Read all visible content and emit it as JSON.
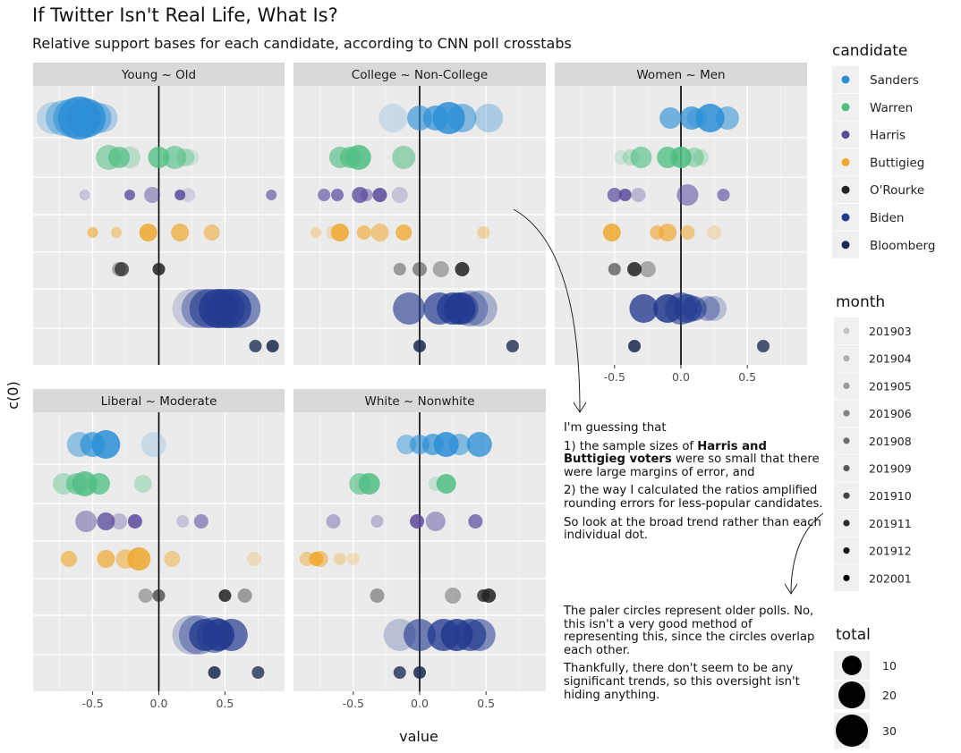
{
  "chart_data": {
    "type": "scatter",
    "title": "If Twitter Isn't Real Life, What Is?",
    "subtitle": "Relative support bases for each candidate, according to CNN poll crosstabs",
    "xlabel": "value",
    "ylabel": "c(0)",
    "xlim": [
      -0.95,
      0.95
    ],
    "x_ticks": [
      "-0.5",
      "0.0",
      "0.5"
    ],
    "candidates": [
      {
        "name": "Sanders",
        "color": "#2B8FD6"
      },
      {
        "name": "Warren",
        "color": "#4FBF83"
      },
      {
        "name": "Harris",
        "color": "#5B4A9E"
      },
      {
        "name": "Buttigieg",
        "color": "#F0A830"
      },
      {
        "name": "O'Rourke",
        "color": "#222222"
      },
      {
        "name": "Biden",
        "color": "#233A8F"
      },
      {
        "name": "Bloomberg",
        "color": "#1A2A50"
      }
    ],
    "months": [
      "201903",
      "201904",
      "201905",
      "201906",
      "201908",
      "201909",
      "201910",
      "201911",
      "201912",
      "202001"
    ],
    "total_sizes": [
      10,
      20,
      30
    ],
    "panels": [
      {
        "label": "Young ~ Old",
        "points": {
          "Sanders": [
            [
              -0.8,
              18,
              1
            ],
            [
              -0.72,
              20,
              3
            ],
            [
              -0.65,
              22,
              5
            ],
            [
              -0.6,
              24,
              9
            ],
            [
              -0.55,
              22,
              8
            ],
            [
              -0.48,
              18,
              4
            ],
            [
              -0.42,
              16,
              2
            ]
          ],
          "Warren": [
            [
              -0.38,
              14,
              5
            ],
            [
              -0.3,
              12,
              7
            ],
            [
              -0.22,
              12,
              2
            ],
            [
              0.0,
              12,
              8
            ],
            [
              0.12,
              13,
              6
            ],
            [
              0.2,
              10,
              3
            ],
            [
              0.24,
              9,
              0
            ]
          ],
          "Harris": [
            [
              -0.56,
              6,
              1
            ],
            [
              -0.22,
              6,
              8
            ],
            [
              -0.05,
              9,
              4
            ],
            [
              0.16,
              6,
              9
            ],
            [
              0.22,
              8,
              0
            ],
            [
              0.85,
              6,
              6
            ]
          ],
          "Buttigieg": [
            [
              -0.5,
              6,
              6
            ],
            [
              -0.32,
              6,
              4
            ],
            [
              -0.08,
              10,
              9
            ],
            [
              0.16,
              10,
              7
            ],
            [
              0.4,
              9,
              5
            ]
          ],
          "O'Rourke": [
            [
              -0.3,
              8,
              2
            ],
            [
              -0.28,
              8,
              7
            ],
            [
              0.0,
              7,
              9
            ]
          ],
          "Biden": [
            [
              0.25,
              22,
              0
            ],
            [
              0.32,
              22,
              3
            ],
            [
              0.38,
              22,
              6
            ],
            [
              0.45,
              22,
              9
            ],
            [
              0.5,
              22,
              7
            ],
            [
              0.55,
              22,
              8
            ],
            [
              0.62,
              22,
              5
            ]
          ],
          "Bloomberg": [
            [
              0.73,
              7,
              8
            ],
            [
              0.86,
              7,
              9
            ]
          ]
        }
      },
      {
        "label": "College ~ Non-College",
        "points": {
          "Sanders": [
            [
              -0.2,
              16,
              0
            ],
            [
              0.0,
              14,
              6
            ],
            [
              0.12,
              14,
              7
            ],
            [
              0.22,
              18,
              9
            ],
            [
              0.32,
              16,
              5
            ],
            [
              0.52,
              16,
              2
            ]
          ],
          "Warren": [
            [
              -0.6,
              12,
              6
            ],
            [
              -0.52,
              12,
              7
            ],
            [
              -0.46,
              14,
              9
            ],
            [
              -0.12,
              13,
              5
            ]
          ],
          "Harris": [
            [
              -0.72,
              7,
              6
            ],
            [
              -0.62,
              7,
              7
            ],
            [
              -0.45,
              9,
              8
            ],
            [
              -0.4,
              7,
              4
            ],
            [
              -0.3,
              8,
              9
            ],
            [
              -0.15,
              9,
              1
            ]
          ],
          "Buttigieg": [
            [
              -0.78,
              6,
              2
            ],
            [
              -0.65,
              8,
              1
            ],
            [
              -0.6,
              10,
              9
            ],
            [
              -0.42,
              8,
              6
            ],
            [
              -0.3,
              10,
              5
            ],
            [
              -0.12,
              9,
              8
            ],
            [
              0.48,
              7,
              3
            ]
          ],
          "O'Rourke": [
            [
              -0.15,
              7,
              3
            ],
            [
              0.0,
              8,
              4
            ],
            [
              0.16,
              9,
              2
            ],
            [
              0.32,
              8,
              9
            ]
          ],
          "Biden": [
            [
              -0.08,
              18,
              6
            ],
            [
              0.15,
              18,
              7
            ],
            [
              0.25,
              18,
              8
            ],
            [
              0.3,
              18,
              9
            ],
            [
              0.32,
              18,
              5
            ],
            [
              0.45,
              20,
              2
            ],
            [
              0.38,
              20,
              3
            ]
          ],
          "Bloomberg": [
            [
              0.0,
              7,
              9
            ],
            [
              0.7,
              7,
              8
            ]
          ]
        }
      },
      {
        "label": "Women ~ Men",
        "points": {
          "Sanders": [
            [
              -0.08,
              12,
              6
            ],
            [
              0.08,
              13,
              7
            ],
            [
              0.22,
              16,
              9
            ],
            [
              0.35,
              13,
              5
            ],
            [
              0.12,
              11,
              3
            ]
          ],
          "Warren": [
            [
              -0.45,
              8,
              0
            ],
            [
              -0.38,
              9,
              2
            ],
            [
              -0.3,
              12,
              6
            ],
            [
              -0.1,
              12,
              8
            ],
            [
              0.0,
              12,
              9
            ],
            [
              0.1,
              11,
              4
            ],
            [
              0.15,
              9,
              1
            ]
          ],
          "Harris": [
            [
              -0.5,
              8,
              7
            ],
            [
              -0.42,
              7,
              9
            ],
            [
              -0.32,
              8,
              2
            ],
            [
              0.05,
              12,
              5
            ],
            [
              0.32,
              7,
              6
            ]
          ],
          "Buttigieg": [
            [
              -0.52,
              10,
              9
            ],
            [
              -0.18,
              8,
              6
            ],
            [
              -0.1,
              10,
              7
            ],
            [
              0.05,
              8,
              5
            ],
            [
              0.25,
              8,
              1
            ]
          ],
          "O'Rourke": [
            [
              -0.5,
              7,
              5
            ],
            [
              -0.35,
              8,
              9
            ],
            [
              -0.25,
              9,
              2
            ]
          ],
          "Biden": [
            [
              -0.28,
              16,
              8
            ],
            [
              -0.1,
              16,
              9
            ],
            [
              0.0,
              18,
              6
            ],
            [
              0.05,
              16,
              7
            ],
            [
              0.1,
              14,
              5
            ],
            [
              0.2,
              14,
              3
            ],
            [
              0.25,
              14,
              1
            ]
          ],
          "Bloomberg": [
            [
              -0.35,
              7,
              9
            ],
            [
              0.62,
              7,
              8
            ]
          ]
        }
      },
      {
        "label": "Liberal ~ Moderate",
        "points": {
          "Sanders": [
            [
              -0.6,
              14,
              4
            ],
            [
              -0.5,
              14,
              7
            ],
            [
              -0.4,
              16,
              9
            ],
            [
              -0.04,
              14,
              0
            ]
          ],
          "Warren": [
            [
              -0.72,
              12,
              3
            ],
            [
              -0.62,
              12,
              6
            ],
            [
              -0.56,
              14,
              9
            ],
            [
              -0.45,
              12,
              8
            ],
            [
              -0.12,
              10,
              2
            ]
          ],
          "Harris": [
            [
              -0.55,
              12,
              4
            ],
            [
              -0.4,
              10,
              8
            ],
            [
              -0.3,
              9,
              2
            ],
            [
              -0.18,
              8,
              9
            ],
            [
              0.18,
              7,
              1
            ],
            [
              0.32,
              8,
              5
            ]
          ],
          "Buttigieg": [
            [
              -0.68,
              9,
              6
            ],
            [
              -0.4,
              10,
              7
            ],
            [
              -0.25,
              11,
              5
            ],
            [
              -0.15,
              13,
              9
            ],
            [
              0.1,
              9,
              4
            ],
            [
              0.72,
              8,
              1
            ]
          ],
          "O'Rourke": [
            [
              -0.1,
              8,
              2
            ],
            [
              0.0,
              7,
              6
            ],
            [
              0.5,
              7,
              9
            ],
            [
              0.65,
              8,
              3
            ]
          ],
          "Biden": [
            [
              0.25,
              22,
              1
            ],
            [
              0.3,
              22,
              3
            ],
            [
              0.35,
              18,
              8
            ],
            [
              0.45,
              18,
              9
            ],
            [
              0.55,
              18,
              7
            ],
            [
              0.42,
              20,
              5
            ]
          ],
          "Bloomberg": [
            [
              0.42,
              7,
              9
            ],
            [
              0.75,
              7,
              8
            ]
          ]
        }
      },
      {
        "label": "White ~ Nonwhite",
        "points": {
          "Sanders": [
            [
              -0.1,
              11,
              4
            ],
            [
              0.0,
              11,
              6
            ],
            [
              0.1,
              12,
              7
            ],
            [
              0.2,
              14,
              9
            ],
            [
              0.3,
              12,
              5
            ],
            [
              0.45,
              14,
              8
            ]
          ],
          "Warren": [
            [
              -0.45,
              12,
              6
            ],
            [
              -0.38,
              12,
              9
            ],
            [
              0.12,
              8,
              1
            ],
            [
              0.2,
              11,
              9
            ]
          ],
          "Harris": [
            [
              -0.65,
              8,
              3
            ],
            [
              -0.32,
              7,
              2
            ],
            [
              -0.02,
              8,
              9
            ],
            [
              0.12,
              11,
              4
            ],
            [
              0.42,
              8,
              7
            ]
          ],
          "Buttigieg": [
            [
              -0.85,
              8,
              4
            ],
            [
              -0.75,
              9,
              5
            ],
            [
              -0.78,
              8,
              9
            ],
            [
              -0.6,
              7,
              2
            ],
            [
              -0.5,
              7,
              1
            ]
          ],
          "O'Rourke": [
            [
              -0.32,
              8,
              3
            ],
            [
              0.25,
              9,
              2
            ],
            [
              0.48,
              7,
              8
            ],
            [
              0.52,
              8,
              9
            ]
          ],
          "Biden": [
            [
              -0.15,
              18,
              1
            ],
            [
              0.0,
              18,
              6
            ],
            [
              0.18,
              18,
              8
            ],
            [
              0.28,
              18,
              9
            ],
            [
              0.38,
              18,
              7
            ],
            [
              0.45,
              18,
              5
            ]
          ],
          "Bloomberg": [
            [
              -0.15,
              7,
              8
            ],
            [
              0.0,
              7,
              9
            ]
          ]
        }
      }
    ]
  },
  "legends": {
    "candidate_title": "candidate",
    "month_title": "month",
    "total_title": "total"
  },
  "annotations": {
    "note1_intro": "I'm guessing that",
    "note1_p1_pre": "1) the sample sizes of ",
    "note1_p1_bold": "Harris and Buttigieg voters",
    "note1_p1_post": " were so small that there were large margins of error, and",
    "note1_p2": "2) the way I calculated the ratios amplified rounding errors for less-popular candidates.",
    "note1_p3": "So look at the broad trend rather than each individual dot.",
    "note2_p1": "The paler circles represent older polls. No, this isn't a very good method of representing this, since the circles overlap each other.",
    "note2_p2": "Thankfully, there don't seem to be any significant trends, so this oversight isn't hiding anything."
  }
}
